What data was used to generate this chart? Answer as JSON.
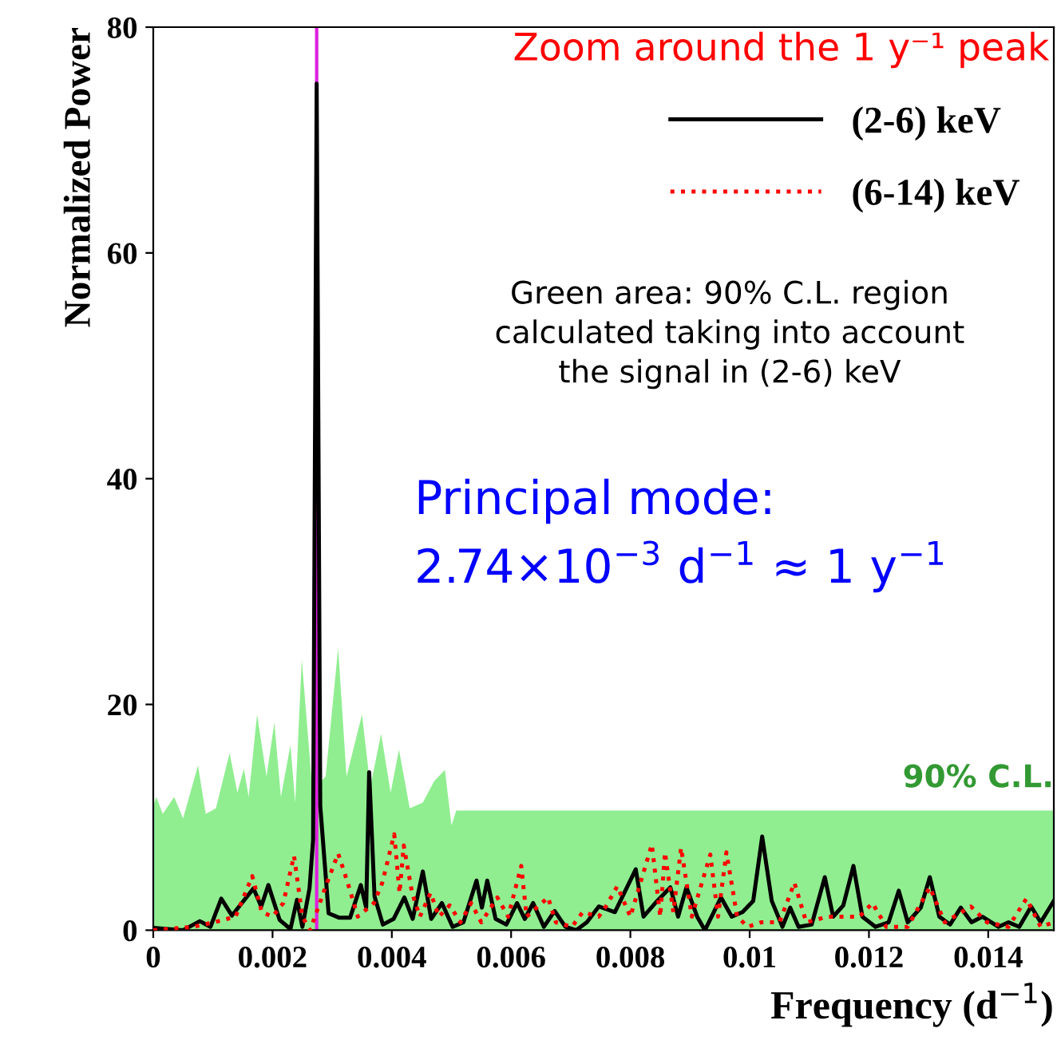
{
  "chart_data": {
    "type": "line",
    "xlabel": "Frequency (d$^{−1}$)",
    "ylabel": "Normalized Power",
    "xlim": [
      0,
      0.0151
    ],
    "ylim": [
      0,
      80
    ],
    "xticks": [
      0,
      0.002,
      0.004,
      0.006,
      0.008,
      0.01,
      0.012,
      0.014
    ],
    "yticks": [
      0,
      20,
      40,
      60,
      80
    ],
    "grid": false,
    "legend": "top right",
    "marker": "none",
    "series": [
      {
        "name": "90% C.L.",
        "type": "area",
        "color": "#90ee90",
        "x": [
          0,
          5e-05,
          0.00016,
          0.00035,
          0.0005,
          0.00075,
          0.00088,
          0.00105,
          0.00128,
          0.00141,
          0.00152,
          0.0016,
          0.00174,
          0.0019,
          0.00203,
          0.00214,
          0.0023,
          0.00238,
          0.00249,
          0.00265,
          0.0027,
          0.00272,
          0.00276,
          0.00278,
          0.00289,
          0.0031,
          0.00324,
          0.0035,
          0.00364,
          0.00382,
          0.00398,
          0.00412,
          0.0043,
          0.00452,
          0.00471,
          0.00489,
          0.005,
          0.00508,
          0.0151
        ],
        "values": [
          11,
          11.8,
          10.3,
          11.8,
          9.9,
          14.6,
          10.3,
          10.8,
          15.7,
          12.2,
          14.3,
          11.8,
          19.1,
          13.6,
          18.4,
          11.8,
          16.4,
          11.3,
          24,
          13.6,
          13,
          80,
          80,
          13,
          13.6,
          25,
          13.6,
          19.1,
          12.7,
          17.4,
          12.2,
          16,
          10.8,
          11.3,
          13.2,
          14.2,
          9.3,
          10.6,
          10.6
        ]
      },
      {
        "name": "(2-6) keV",
        "color": "#000000",
        "line_style": "solid",
        "x": [
          0,
          0.0005,
          0.00078,
          0.00096,
          0.00114,
          0.00132,
          0.00168,
          0.00181,
          0.00193,
          0.00212,
          0.0023,
          0.00241,
          0.0025,
          0.00262,
          0.00268,
          0.00274,
          0.0028,
          0.00294,
          0.00312,
          0.0033,
          0.00348,
          0.00357,
          0.00362,
          0.00371,
          0.00385,
          0.00403,
          0.00421,
          0.00435,
          0.00452,
          0.00466,
          0.00484,
          0.00502,
          0.0052,
          0.00542,
          0.00551,
          0.0056,
          0.00574,
          0.00592,
          0.0061,
          0.00623,
          0.00637,
          0.00655,
          0.00673,
          0.00691,
          0.00709,
          0.00727,
          0.00747,
          0.00774,
          0.00809,
          0.00822,
          0.00845,
          0.00867,
          0.0088,
          0.00894,
          0.00912,
          0.00925,
          0.00952,
          0.0097,
          0.00988,
          0.01006,
          0.01021,
          0.01037,
          0.01055,
          0.01068,
          0.01082,
          0.01104,
          0.01126,
          0.0114,
          0.01157,
          0.01174,
          0.01189,
          0.01211,
          0.01233,
          0.0125,
          0.01265,
          0.01287,
          0.01302,
          0.01318,
          0.01336,
          0.01354,
          0.01372,
          0.0139,
          0.01417,
          0.01434,
          0.01452,
          0.01472,
          0.01488,
          0.0151
        ],
        "values": [
          0.2,
          0,
          0.8,
          0.3,
          2.8,
          1.3,
          3.7,
          2.1,
          4,
          0.9,
          0.1,
          2.7,
          0.3,
          3.7,
          8,
          75,
          11,
          1.5,
          1.1,
          1.1,
          4,
          2,
          14,
          3,
          0.5,
          1,
          2.9,
          1,
          5.2,
          1,
          2.4,
          0.3,
          0.7,
          4.4,
          2,
          4.4,
          1,
          0.5,
          2.4,
          1,
          2.4,
          0.3,
          1.7,
          0.3,
          0,
          0.7,
          2.1,
          1.6,
          5.4,
          1.2,
          2.6,
          3.8,
          1.2,
          3.8,
          1.2,
          0,
          2.9,
          1.2,
          1.6,
          2.6,
          8.3,
          2.6,
          0.3,
          2,
          0.3,
          0.5,
          4.7,
          1.2,
          2.2,
          5.7,
          1.2,
          0.3,
          0.7,
          3.5,
          0.7,
          2,
          4.7,
          1.2,
          0.5,
          2,
          0.7,
          1.2,
          0.3,
          0.7,
          0.3,
          2.1,
          0.7,
          2.6
        ]
      },
      {
        "name": "(6-14) keV",
        "color": "#ff0000",
        "line_style": "dotted",
        "x": [
          0,
          0.00067,
          0.00102,
          0.00138,
          0.00166,
          0.00182,
          0.002,
          0.00218,
          0.00236,
          0.0025,
          0.00263,
          0.0029,
          0.0031,
          0.00326,
          0.00343,
          0.0037,
          0.00384,
          0.00404,
          0.00413,
          0.0042,
          0.00434,
          0.00447,
          0.00465,
          0.00479,
          0.00497,
          0.00515,
          0.00533,
          0.0055,
          0.00577,
          0.00595,
          0.00617,
          0.00626,
          0.00662,
          0.00675,
          0.00702,
          0.0072,
          0.00747,
          0.0076,
          0.00778,
          0.008,
          0.00836,
          0.0085,
          0.00858,
          0.00872,
          0.00885,
          0.00903,
          0.00934,
          0.00947,
          0.00961,
          0.00979,
          0.00997,
          0.01019,
          0.0105,
          0.01075,
          0.01095,
          0.01131,
          0.01157,
          0.01184,
          0.01206,
          0.01229,
          0.01265,
          0.01302,
          0.01327,
          0.01371,
          0.01398,
          0.01434,
          0.01464,
          0.01488,
          0.0151
        ],
        "values": [
          0,
          0.3,
          0.7,
          1.2,
          4.8,
          1.6,
          1.2,
          2.4,
          6.6,
          1.2,
          0,
          4,
          6.8,
          4.2,
          1.2,
          2.4,
          4.2,
          8.5,
          3.3,
          7.5,
          3.3,
          1.2,
          3.3,
          1.2,
          2.2,
          0.7,
          2.4,
          0.7,
          2.9,
          1.2,
          5.7,
          1.2,
          2.9,
          0.7,
          0.3,
          1.6,
          1.2,
          2.2,
          3.9,
          1.2,
          7.6,
          1.2,
          6.9,
          1.6,
          7.3,
          1.2,
          6.7,
          1.2,
          6.9,
          1.2,
          0.3,
          0.7,
          0.7,
          4.2,
          0.7,
          1.2,
          1.2,
          1.2,
          2.4,
          0.3,
          0.3,
          3.8,
          0.7,
          2.1,
          0.7,
          0.3,
          2.8,
          0.3,
          0.7
        ]
      }
    ],
    "ref_lines": [
      {
        "axis": "x",
        "value": 0.00274,
        "label": null,
        "color": "#e020e0"
      }
    ],
    "annotations": [
      "Zoom around the 1 y⁻¹ peak",
      "Green area: 90% C.L. region\ncalculated taking into account\nthe signal in (2-6) keV",
      "Principal mode:\n2.74×10$^{−3}$ d$^{−1}$ ≈ 1 y$^{−1}$"
    ]
  }
}
